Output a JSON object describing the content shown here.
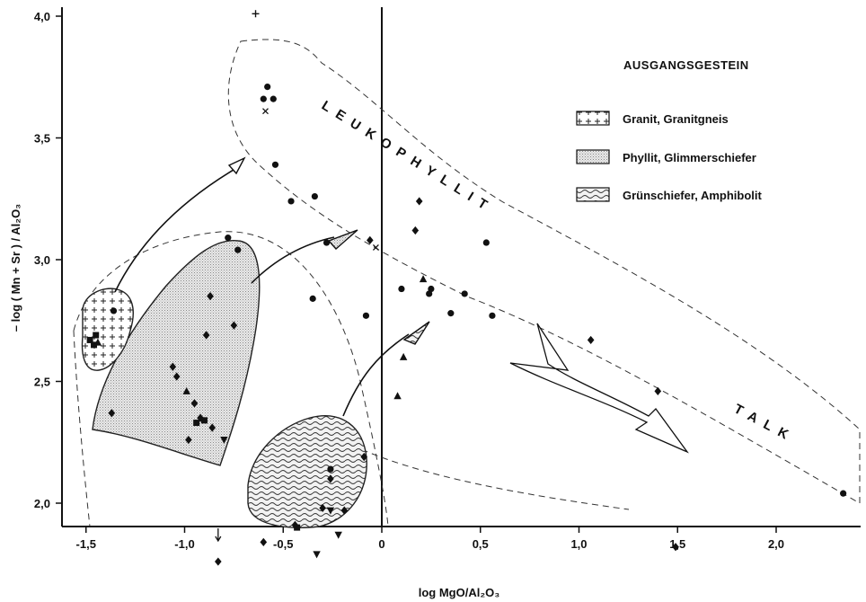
{
  "chart_data": {
    "type": "scatter",
    "title": "",
    "xlabel": "log MgO/Al₂O₃",
    "ylabel": "– log ( Mn + Sr ) / Al₂O₃",
    "xlim": [
      -1.6,
      2.45
    ],
    "ylim": [
      1.68,
      4.28
    ],
    "x_ticks": [
      "-1,5",
      "-1,0",
      "-0,5",
      "0",
      "0,5",
      "1,0",
      "1,5",
      "2,0"
    ],
    "x_tick_values": [
      -1.5,
      -1.0,
      -0.5,
      0,
      0.5,
      1.0,
      1.5,
      2.0
    ],
    "y_ticks": [
      "2,0",
      "2,5",
      "3,0",
      "3,5",
      "4,0"
    ],
    "y_tick_values": [
      2.0,
      2.5,
      3.0,
      3.5,
      4.0
    ],
    "grid": false,
    "legend": {
      "title": "AUSGANGSGESTEIN",
      "placement": "top-right",
      "entries": [
        {
          "label": "Granit, Granitgneis",
          "pattern": "crosses"
        },
        {
          "label": "Phyllit, Glimmerschiefer",
          "pattern": "stipple"
        },
        {
          "label": "Grünschiefer, Amphibolit",
          "pattern": "waves"
        }
      ]
    },
    "annotations": [
      "LEUKOPHYLLIT",
      "TALK"
    ],
    "series": [
      {
        "marker": "circle",
        "points": [
          [
            -1.36,
            2.79
          ],
          [
            -0.78,
            3.09
          ],
          [
            -0.73,
            3.04
          ],
          [
            -0.58,
            3.71
          ],
          [
            -0.6,
            3.66
          ],
          [
            -0.55,
            3.66
          ],
          [
            -0.54,
            3.39
          ],
          [
            -0.46,
            3.24
          ],
          [
            -0.34,
            3.26
          ],
          [
            -0.28,
            3.07
          ],
          [
            -0.35,
            2.84
          ],
          [
            -0.08,
            2.77
          ],
          [
            0.1,
            2.88
          ],
          [
            0.24,
            2.86
          ],
          [
            0.25,
            2.88
          ],
          [
            0.35,
            2.78
          ],
          [
            0.42,
            2.86
          ],
          [
            0.53,
            3.07
          ],
          [
            0.56,
            2.77
          ],
          [
            2.34,
            2.04
          ],
          [
            -0.26,
            2.14
          ]
        ]
      },
      {
        "marker": "diamond",
        "points": [
          [
            -1.37,
            2.37
          ],
          [
            -1.06,
            2.56
          ],
          [
            -1.04,
            2.52
          ],
          [
            -0.87,
            2.85
          ],
          [
            -0.89,
            2.69
          ],
          [
            -0.75,
            2.73
          ],
          [
            -0.95,
            2.41
          ],
          [
            -0.98,
            2.26
          ],
          [
            -0.92,
            2.35
          ],
          [
            -0.86,
            2.31
          ],
          [
            -0.06,
            3.08
          ],
          [
            0.19,
            3.24
          ],
          [
            0.17,
            3.12
          ],
          [
            1.06,
            2.67
          ],
          [
            1.4,
            2.46
          ],
          [
            1.49,
            1.82
          ],
          [
            -0.83,
            1.76
          ],
          [
            -0.26,
            2.1
          ],
          [
            -0.09,
            2.19
          ],
          [
            -0.3,
            1.98
          ],
          [
            -0.19,
            1.97
          ],
          [
            -0.6,
            1.84
          ],
          [
            -0.44,
            1.91
          ]
        ]
      },
      {
        "marker": "square",
        "points": [
          [
            -1.48,
            2.67
          ],
          [
            -1.46,
            2.65
          ],
          [
            -1.45,
            2.69
          ],
          [
            -0.94,
            2.33
          ],
          [
            -0.9,
            2.34
          ],
          [
            -0.43,
            1.9
          ]
        ]
      },
      {
        "marker": "triangle",
        "points": [
          [
            -1.44,
            2.66
          ],
          [
            -0.99,
            2.46
          ],
          [
            0.08,
            2.44
          ],
          [
            0.11,
            2.6
          ],
          [
            0.21,
            2.92
          ]
        ]
      },
      {
        "marker": "triangle-down",
        "points": [
          [
            -0.8,
            2.26
          ],
          [
            -0.26,
            1.97
          ],
          [
            -0.22,
            1.87
          ],
          [
            -0.33,
            1.79
          ]
        ]
      },
      {
        "marker": "plus",
        "points": [
          [
            -0.64,
            4.01
          ]
        ]
      },
      {
        "marker": "x",
        "points": [
          [
            -0.59,
            3.61
          ],
          [
            -0.03,
            3.05
          ]
        ]
      }
    ]
  }
}
